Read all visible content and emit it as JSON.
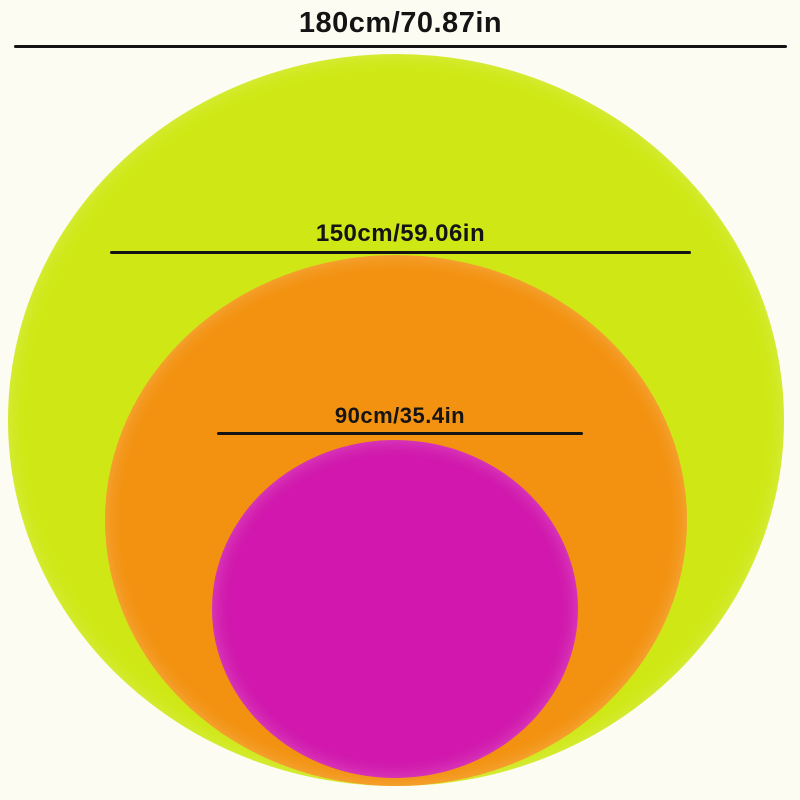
{
  "page": {
    "background_color": "#fdfcf3"
  },
  "diagram": {
    "name": "circle-size-comparison",
    "line_color": "#141414",
    "text_color": "#141414",
    "rings": [
      {
        "label": "180cm/70.87in",
        "diameter_cm": 180,
        "diameter_in": 70.87,
        "color": "#cfe815"
      },
      {
        "label": "150cm/59.06in",
        "diameter_cm": 150,
        "diameter_in": 59.06,
        "color": "#f39210"
      },
      {
        "label": "90cm/35.4in",
        "diameter_cm": 90,
        "diameter_in": 35.4,
        "color": "#d117ad"
      }
    ]
  }
}
